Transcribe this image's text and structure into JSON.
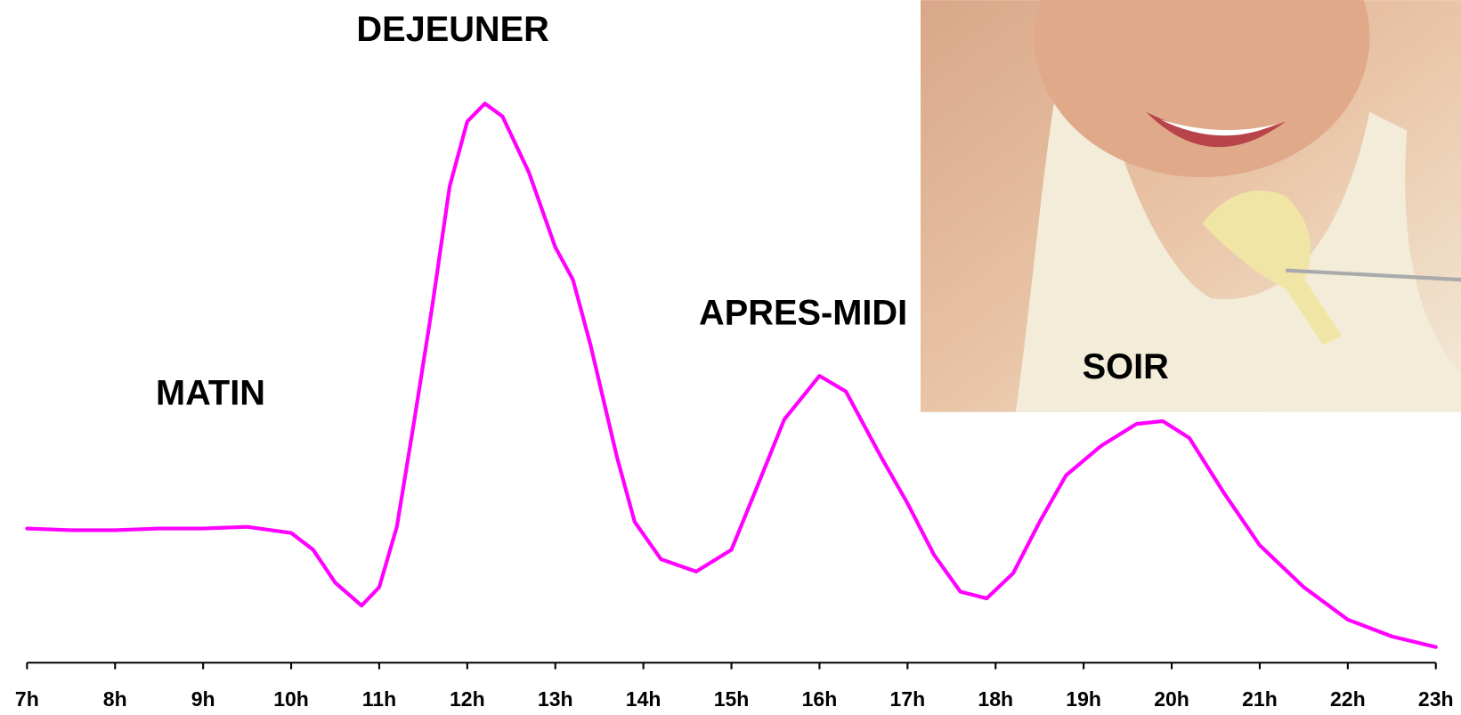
{
  "chart_data": {
    "type": "line",
    "annotations": [
      "DEJEUNER",
      "MATIN",
      "APRES-MIDI",
      "SOIR"
    ],
    "x": [
      7,
      7.5,
      8,
      8.5,
      9,
      9.5,
      10,
      10.25,
      10.5,
      10.8,
      11,
      11.2,
      11.4,
      11.6,
      11.8,
      12,
      12.2,
      12.4,
      12.7,
      13,
      13.2,
      13.4,
      13.7,
      13.9,
      14.2,
      14.6,
      15,
      15.3,
      15.6,
      16,
      16.3,
      16.7,
      17,
      17.3,
      17.6,
      17.9,
      18.2,
      18.5,
      18.8,
      19.2,
      19.6,
      19.9,
      20.2,
      20.6,
      21,
      21.5,
      22,
      22.5,
      23
    ],
    "series": [
      {
        "color": "#ff00ff",
        "values": [
          24,
          23.7,
          23.7,
          24,
          24,
          24.3,
          23.2,
          20.2,
          14.3,
          10.2,
          13.5,
          24.3,
          43.5,
          63.5,
          85.2,
          96.8,
          100,
          97.7,
          87.7,
          74.3,
          68.5,
          56.8,
          36.8,
          25.2,
          18.5,
          16.3,
          20.2,
          31.8,
          43.5,
          51.3,
          48.5,
          36.8,
          28.5,
          19.3,
          12.7,
          11.5,
          16,
          25.2,
          33.5,
          38.8,
          42.7,
          43.2,
          40.2,
          30.2,
          21,
          13.5,
          7.7,
          4.7,
          2.8
        ]
      }
    ],
    "xlim": [
      7,
      23
    ],
    "ylim": [
      0,
      100
    ],
    "xticks": [
      {
        "value": 7,
        "label": "7h"
      },
      {
        "value": 8,
        "label": "8h"
      },
      {
        "value": 9,
        "label": "9h"
      },
      {
        "value": 10,
        "label": "10h"
      },
      {
        "value": 11,
        "label": "11h"
      },
      {
        "value": 12,
        "label": "12h"
      },
      {
        "value": 13,
        "label": "13h"
      },
      {
        "value": 14,
        "label": "14h"
      },
      {
        "value": 15,
        "label": "15h"
      },
      {
        "value": 16,
        "label": "16h"
      },
      {
        "value": 17,
        "label": "17h"
      },
      {
        "value": 18,
        "label": "18h"
      },
      {
        "value": 19,
        "label": "19h"
      },
      {
        "value": 20,
        "label": "20h"
      },
      {
        "value": 21,
        "label": "21h"
      },
      {
        "value": 22,
        "label": "22h"
      },
      {
        "value": 23,
        "label": "23h"
      }
    ]
  }
}
